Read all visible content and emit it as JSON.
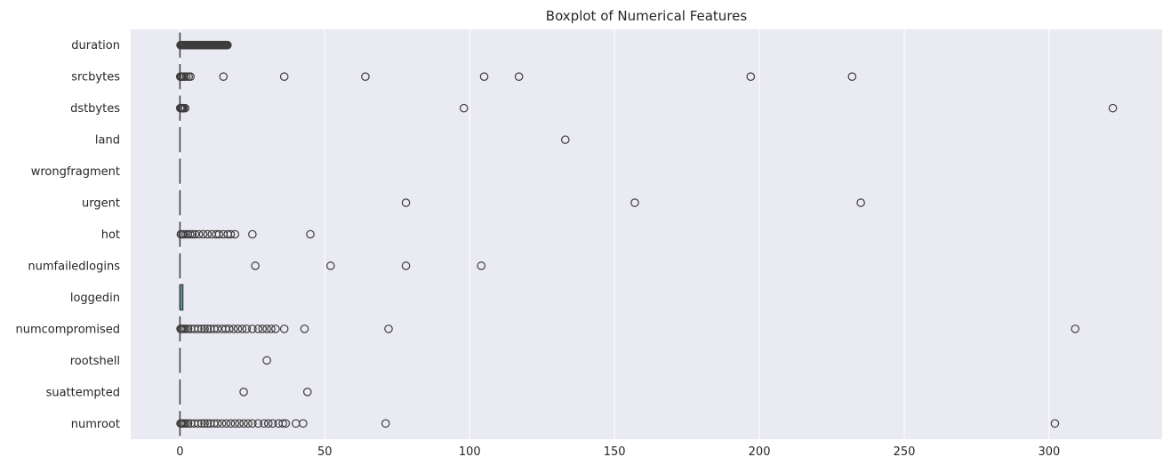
{
  "chart_data": {
    "type": "boxplot",
    "title": "Boxplot of Numerical Features",
    "xlabel": "",
    "ylabel": "",
    "xlim": [
      -17,
      339
    ],
    "xticks": [
      0,
      50,
      100,
      150,
      200,
      250,
      300
    ],
    "grid": "vertical",
    "colors": {
      "plot_background": "#EAEAF2",
      "grid": "#FFFFFF",
      "box_fill": "#4C9DB8",
      "line": "#3D3D3D"
    },
    "categories": [
      "duration",
      "srcbytes",
      "dstbytes",
      "land",
      "wrongfragment",
      "urgent",
      "hot",
      "numfailedlogins",
      "loggedin",
      "numcompromised",
      "rootshell",
      "suattempted",
      "numroot"
    ],
    "boxes": [
      {
        "name": "duration",
        "q1": 0,
        "median": 0,
        "q3": 0,
        "whislo": 0,
        "whishi": 0,
        "fliers": [
          0.2,
          0.5,
          0.8,
          1.1,
          1.4,
          1.7,
          2.0,
          2.3,
          2.6,
          2.9,
          3.2,
          3.5,
          3.8,
          4.1,
          4.4,
          4.7,
          5.0,
          5.3,
          5.6,
          5.9,
          6.2,
          6.5,
          6.8,
          7.1,
          7.4,
          7.7,
          8.0,
          8.3,
          8.6,
          8.9,
          9.2,
          9.5,
          9.8,
          10.1,
          10.4,
          10.7,
          11.0,
          11.3,
          11.6,
          11.9,
          12.2,
          12.5,
          12.8,
          13.1,
          13.4,
          13.7,
          14.0,
          14.3,
          14.6,
          14.9,
          15.2,
          15.5,
          15.8,
          16.1,
          16.4
        ]
      },
      {
        "name": "srcbytes",
        "q1": 0,
        "median": 0,
        "q3": 0,
        "whislo": 0,
        "whishi": 0,
        "fliers": [
          0.1,
          0.3,
          0.6,
          1.0,
          1.5,
          2.2,
          3.0,
          3.6,
          15,
          36,
          64,
          105,
          117,
          197,
          232
        ]
      },
      {
        "name": "dstbytes",
        "q1": 0,
        "median": 0,
        "q3": 0,
        "whislo": 0,
        "whishi": 0,
        "fliers": [
          0.1,
          0.3,
          0.6,
          0.9,
          1.3,
          1.8,
          98,
          322
        ]
      },
      {
        "name": "land",
        "q1": 0,
        "median": 0,
        "q3": 0,
        "whislo": 0,
        "whishi": 0,
        "fliers": [
          133
        ]
      },
      {
        "name": "wrongfragment",
        "q1": 0,
        "median": 0,
        "q3": 0,
        "whislo": 0,
        "whishi": 0,
        "fliers": []
      },
      {
        "name": "urgent",
        "q1": 0,
        "median": 0,
        "q3": 0,
        "whislo": 0,
        "whishi": 0,
        "fliers": [
          78,
          157,
          235
        ]
      },
      {
        "name": "hot",
        "q1": 0,
        "median": 0,
        "q3": 0,
        "whislo": 0,
        "whishi": 0,
        "fliers": [
          0.3,
          0.8,
          1.3,
          2,
          2.7,
          3.5,
          4.3,
          5.2,
          6.5,
          8,
          9.5,
          11,
          12.5,
          13.5,
          15,
          16.5,
          17.5,
          19,
          25,
          45
        ]
      },
      {
        "name": "numfailedlogins",
        "q1": 0,
        "median": 0,
        "q3": 0,
        "whislo": 0,
        "whishi": 0,
        "fliers": [
          26,
          52,
          78,
          104
        ]
      },
      {
        "name": "loggedin",
        "q1": 0,
        "median": 0,
        "q3": 1,
        "whislo": 0,
        "whishi": 1,
        "fliers": []
      },
      {
        "name": "numcompromised",
        "q1": 0,
        "median": 0,
        "q3": 0,
        "whislo": 0,
        "whishi": 0,
        "fliers": [
          0.2,
          0.5,
          0.9,
          1.4,
          2,
          2.8,
          3.8,
          5,
          6.3,
          7.5,
          8.5,
          9.5,
          10.5,
          11.8,
          13,
          14.5,
          15.8,
          17,
          18.5,
          20,
          21.5,
          23,
          25,
          27,
          28.5,
          30,
          31.5,
          33,
          36,
          43,
          72,
          309
        ]
      },
      {
        "name": "rootshell",
        "q1": 0,
        "median": 0,
        "q3": 0,
        "whislo": 0,
        "whishi": 0,
        "fliers": [
          30
        ]
      },
      {
        "name": "suattempted",
        "q1": 0,
        "median": 0,
        "q3": 0,
        "whislo": 0,
        "whishi": 0,
        "fliers": [
          22,
          44
        ]
      },
      {
        "name": "numroot",
        "q1": 0,
        "median": 0,
        "q3": 0,
        "whislo": 0,
        "whishi": 0,
        "fliers": [
          0.2,
          0.5,
          0.9,
          1.4,
          2,
          2.8,
          3.8,
          5,
          6.3,
          7.5,
          8.5,
          9.5,
          10.5,
          11.8,
          13,
          14.5,
          16,
          17.5,
          19,
          20.5,
          22,
          23.5,
          25,
          27,
          29,
          30.5,
          32,
          34,
          35.5,
          36.5,
          40,
          42.5,
          71,
          302
        ]
      }
    ]
  }
}
